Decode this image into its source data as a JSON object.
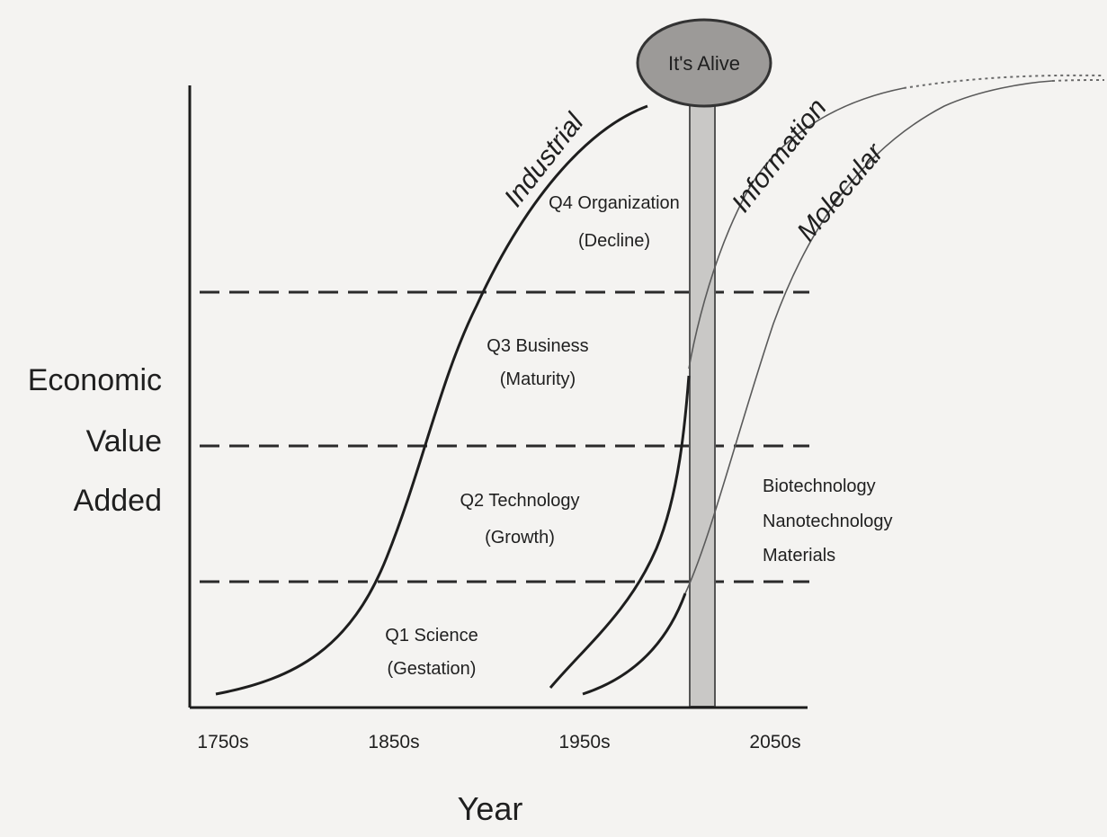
{
  "chart_data": {
    "type": "diagram",
    "ylabel": [
      "Economic",
      "Value",
      "Added"
    ],
    "xlabel": "Year",
    "x_tick_labels": [
      "1750s",
      "1850s",
      "1950s",
      "2050s"
    ],
    "eras": [
      "Industrial",
      "Information",
      "Molecular"
    ],
    "quarters": [
      {
        "name": "Q1 Science",
        "stage": "(Gestation)"
      },
      {
        "name": "Q2 Technology",
        "stage": "(Growth)"
      },
      {
        "name": "Q3 Business",
        "stage": "(Maturity)"
      },
      {
        "name": "Q4 Organization",
        "stage": "(Decline)"
      }
    ],
    "marker_label": "It's Alive",
    "molecular_examples": [
      "Biotechnology",
      "Nanotechnology",
      "Materials"
    ]
  }
}
